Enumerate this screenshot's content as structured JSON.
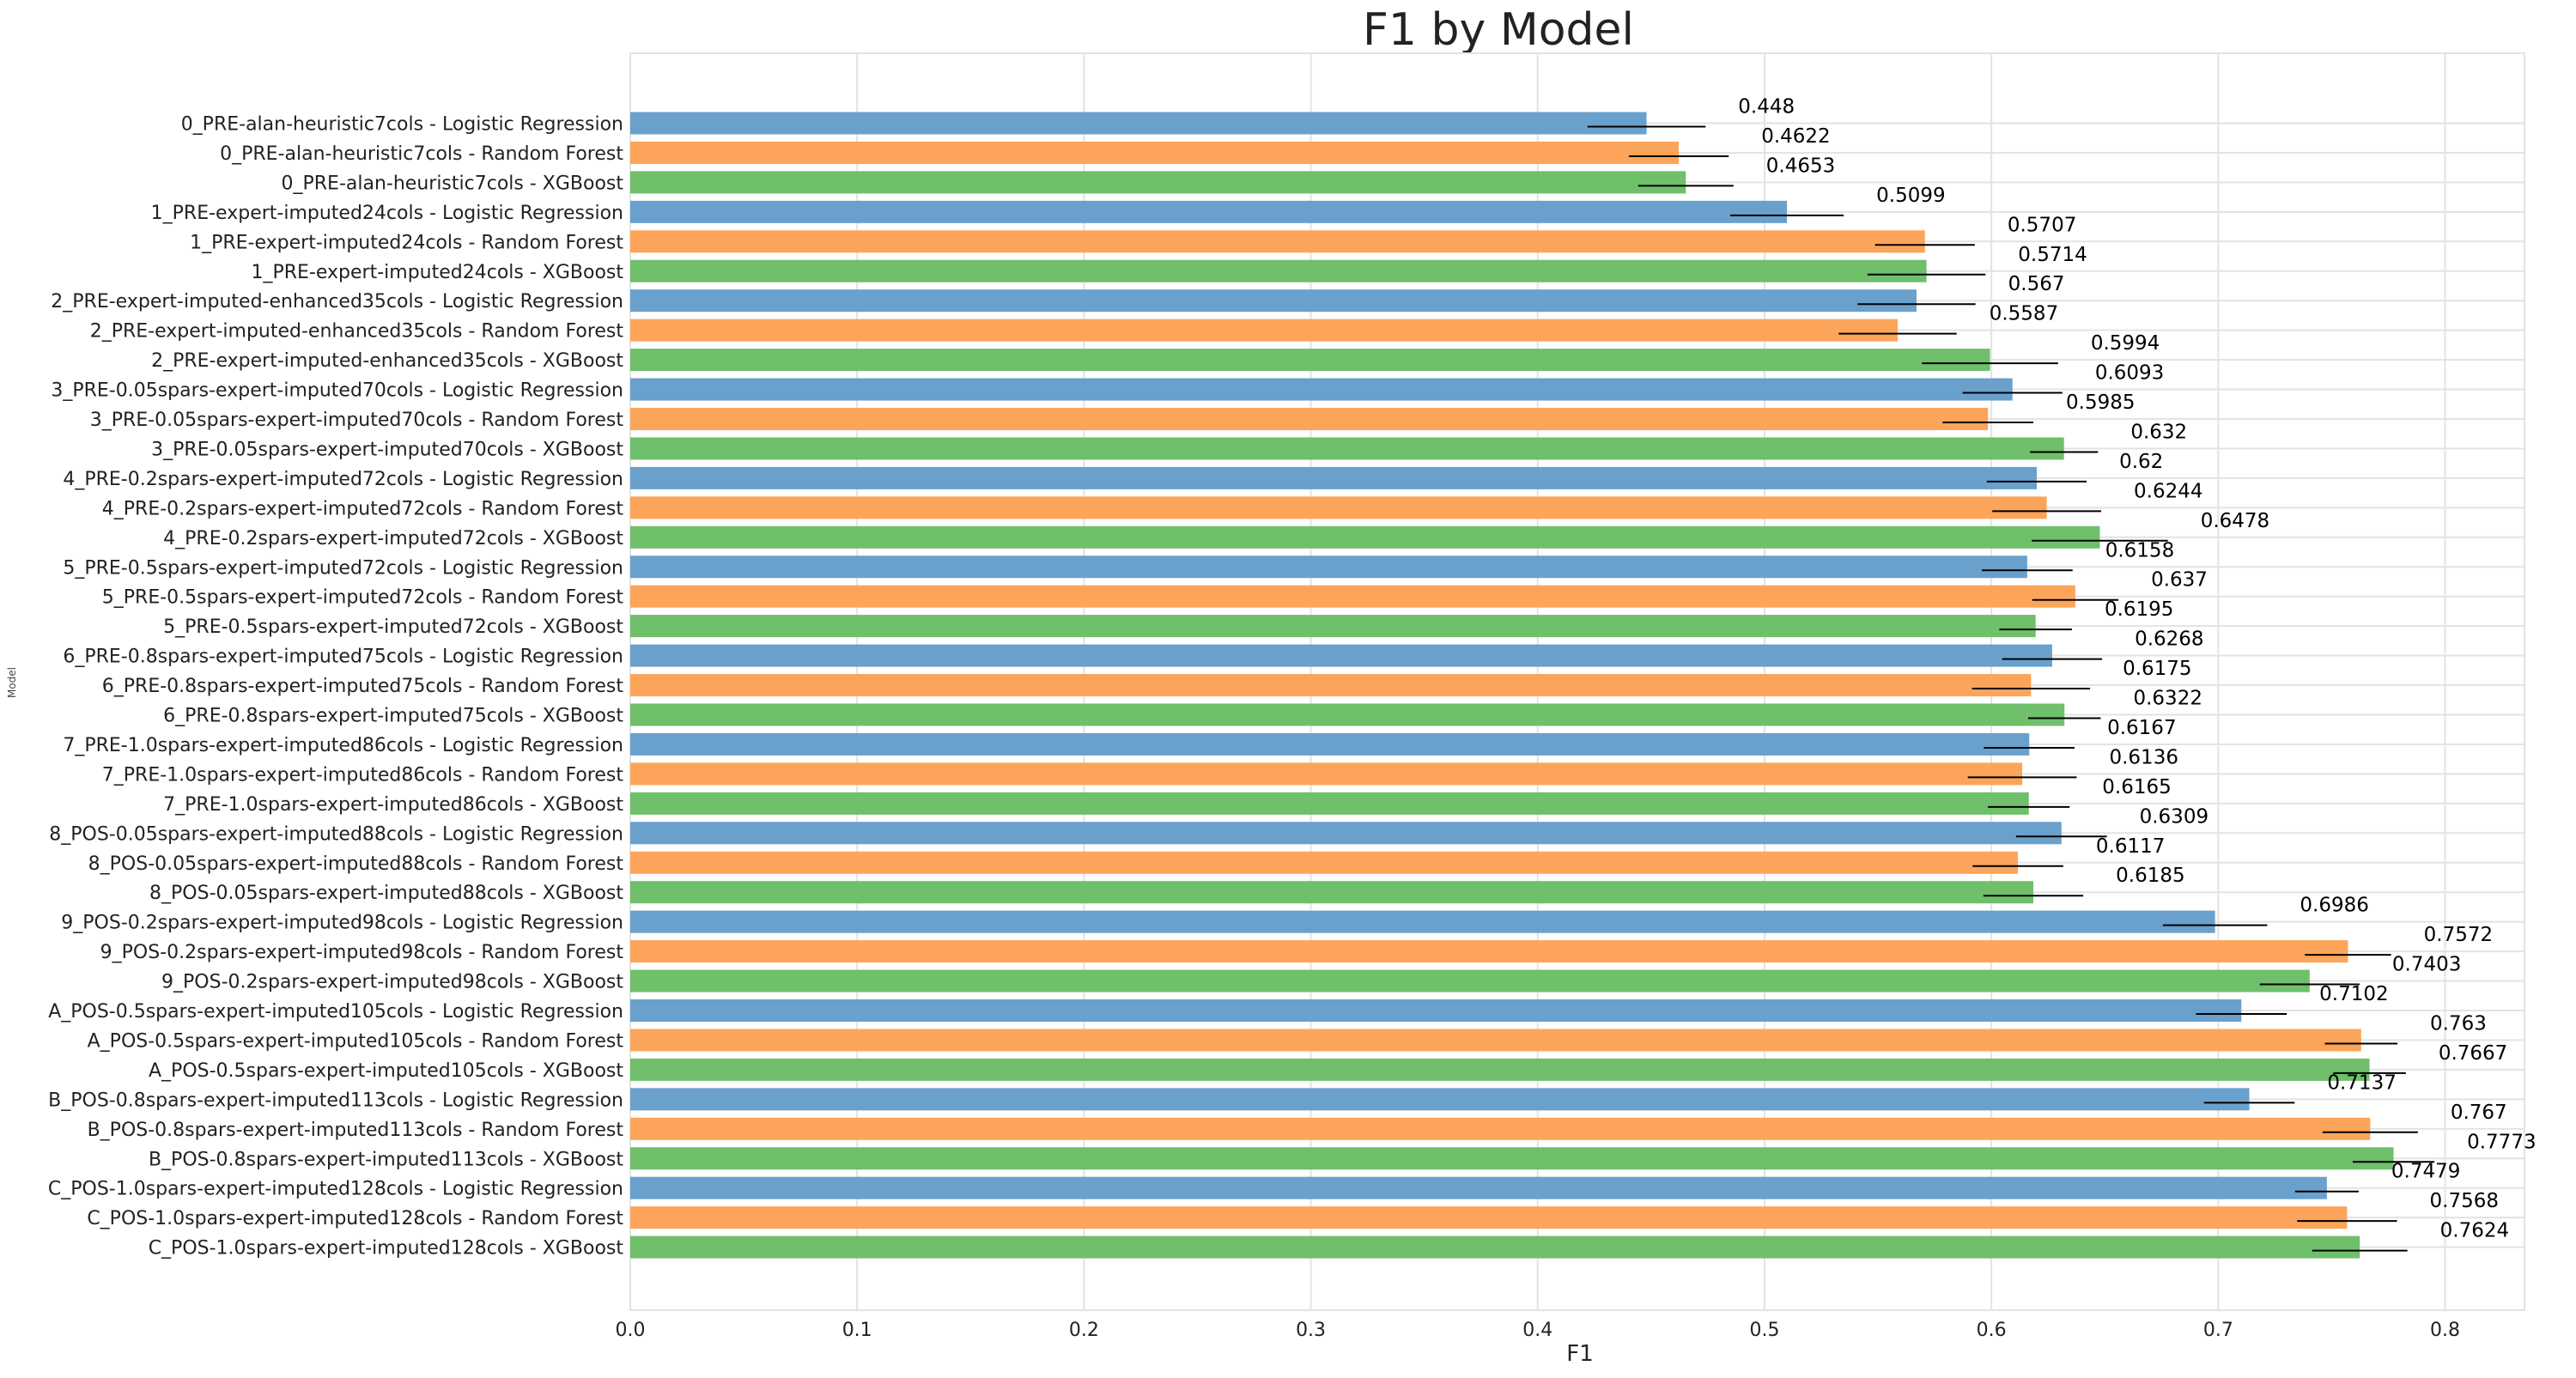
{
  "chart_data": {
    "type": "bar",
    "orientation": "horizontal",
    "title": "F1 by Model",
    "xlabel": "F1",
    "ylabel": "Model",
    "xlim": [
      0,
      0.835
    ],
    "xticks": [
      "0.0",
      "0.1",
      "0.2",
      "0.3",
      "0.4",
      "0.5",
      "0.6",
      "0.7",
      "0.8"
    ],
    "grid": true,
    "series_colors": {
      "Logistic Regression": "#6aa0cc",
      "Random Forest": "#fca55a",
      "XGBoost": "#6fbf6b"
    },
    "bars": [
      {
        "label": "0_PRE-alan-heuristic7cols - Logistic Regression",
        "model": "Logistic Regression",
        "value": 0.448,
        "value_label": "0.448",
        "err": 0.026
      },
      {
        "label": "0_PRE-alan-heuristic7cols - Random Forest",
        "model": "Random Forest",
        "value": 0.4622,
        "value_label": "0.4622",
        "err": 0.022
      },
      {
        "label": "0_PRE-alan-heuristic7cols - XGBoost",
        "model": "XGBoost",
        "value": 0.4653,
        "value_label": "0.4653",
        "err": 0.021
      },
      {
        "label": "1_PRE-expert-imputed24cols - Logistic Regression",
        "model": "Logistic Regression",
        "value": 0.5099,
        "value_label": "0.5099",
        "err": 0.025
      },
      {
        "label": "1_PRE-expert-imputed24cols - Random Forest",
        "model": "Random Forest",
        "value": 0.5707,
        "value_label": "0.5707",
        "err": 0.022
      },
      {
        "label": "1_PRE-expert-imputed24cols - XGBoost",
        "model": "XGBoost",
        "value": 0.5714,
        "value_label": "0.5714",
        "err": 0.026
      },
      {
        "label": "2_PRE-expert-imputed-enhanced35cols - Logistic Regression",
        "model": "Logistic Regression",
        "value": 0.567,
        "value_label": "0.567",
        "err": 0.026
      },
      {
        "label": "2_PRE-expert-imputed-enhanced35cols - Random Forest",
        "model": "Random Forest",
        "value": 0.5587,
        "value_label": "0.5587",
        "err": 0.026
      },
      {
        "label": "2_PRE-expert-imputed-enhanced35cols - XGBoost",
        "model": "XGBoost",
        "value": 0.5994,
        "value_label": "0.5994",
        "err": 0.03
      },
      {
        "label": "3_PRE-0.05spars-expert-imputed70cols - Logistic Regression",
        "model": "Logistic Regression",
        "value": 0.6093,
        "value_label": "0.6093",
        "err": 0.022
      },
      {
        "label": "3_PRE-0.05spars-expert-imputed70cols - Random Forest",
        "model": "Random Forest",
        "value": 0.5985,
        "value_label": "0.5985",
        "err": 0.02
      },
      {
        "label": "3_PRE-0.05spars-expert-imputed70cols - XGBoost",
        "model": "XGBoost",
        "value": 0.632,
        "value_label": "0.632",
        "err": 0.015
      },
      {
        "label": "4_PRE-0.2spars-expert-imputed72cols - Logistic Regression",
        "model": "Logistic Regression",
        "value": 0.62,
        "value_label": "0.62",
        "err": 0.022
      },
      {
        "label": "4_PRE-0.2spars-expert-imputed72cols - Random Forest",
        "model": "Random Forest",
        "value": 0.6244,
        "value_label": "0.6244",
        "err": 0.024
      },
      {
        "label": "4_PRE-0.2spars-expert-imputed72cols - XGBoost",
        "model": "XGBoost",
        "value": 0.6478,
        "value_label": "0.6478",
        "err": 0.03
      },
      {
        "label": "5_PRE-0.5spars-expert-imputed72cols - Logistic Regression",
        "model": "Logistic Regression",
        "value": 0.6158,
        "value_label": "0.6158",
        "err": 0.02
      },
      {
        "label": "5_PRE-0.5spars-expert-imputed72cols - Random Forest",
        "model": "Random Forest",
        "value": 0.637,
        "value_label": "0.637",
        "err": 0.019
      },
      {
        "label": "5_PRE-0.5spars-expert-imputed72cols - XGBoost",
        "model": "XGBoost",
        "value": 0.6195,
        "value_label": "0.6195",
        "err": 0.016
      },
      {
        "label": "6_PRE-0.8spars-expert-imputed75cols - Logistic Regression",
        "model": "Logistic Regression",
        "value": 0.6268,
        "value_label": "0.6268",
        "err": 0.022
      },
      {
        "label": "6_PRE-0.8spars-expert-imputed75cols - Random Forest",
        "model": "Random Forest",
        "value": 0.6175,
        "value_label": "0.6175",
        "err": 0.026
      },
      {
        "label": "6_PRE-0.8spars-expert-imputed75cols - XGBoost",
        "model": "XGBoost",
        "value": 0.6322,
        "value_label": "0.6322",
        "err": 0.016
      },
      {
        "label": "7_PRE-1.0spars-expert-imputed86cols - Logistic Regression",
        "model": "Logistic Regression",
        "value": 0.6167,
        "value_label": "0.6167",
        "err": 0.02
      },
      {
        "label": "7_PRE-1.0spars-expert-imputed86cols - Random Forest",
        "model": "Random Forest",
        "value": 0.6136,
        "value_label": "0.6136",
        "err": 0.024
      },
      {
        "label": "7_PRE-1.0spars-expert-imputed86cols - XGBoost",
        "model": "XGBoost",
        "value": 0.6165,
        "value_label": "0.6165",
        "err": 0.018
      },
      {
        "label": "8_POS-0.05spars-expert-imputed88cols - Logistic Regression",
        "model": "Logistic Regression",
        "value": 0.6309,
        "value_label": "0.6309",
        "err": 0.02
      },
      {
        "label": "8_POS-0.05spars-expert-imputed88cols - Random Forest",
        "model": "Random Forest",
        "value": 0.6117,
        "value_label": "0.6117",
        "err": 0.02
      },
      {
        "label": "8_POS-0.05spars-expert-imputed88cols - XGBoost",
        "model": "XGBoost",
        "value": 0.6185,
        "value_label": "0.6185",
        "err": 0.022
      },
      {
        "label": "9_POS-0.2spars-expert-imputed98cols - Logistic Regression",
        "model": "Logistic Regression",
        "value": 0.6986,
        "value_label": "0.6986",
        "err": 0.023
      },
      {
        "label": "9_POS-0.2spars-expert-imputed98cols - Random Forest",
        "model": "Random Forest",
        "value": 0.7572,
        "value_label": "0.7572",
        "err": 0.019
      },
      {
        "label": "9_POS-0.2spars-expert-imputed98cols - XGBoost",
        "model": "XGBoost",
        "value": 0.7403,
        "value_label": "0.7403",
        "err": 0.022
      },
      {
        "label": "A_POS-0.5spars-expert-imputed105cols - Logistic Regression",
        "model": "Logistic Regression",
        "value": 0.7102,
        "value_label": "0.7102",
        "err": 0.02
      },
      {
        "label": "A_POS-0.5spars-expert-imputed105cols - Random Forest",
        "model": "Random Forest",
        "value": 0.763,
        "value_label": "0.763",
        "err": 0.016
      },
      {
        "label": "A_POS-0.5spars-expert-imputed105cols - XGBoost",
        "model": "XGBoost",
        "value": 0.7667,
        "value_label": "0.7667",
        "err": 0.016
      },
      {
        "label": "B_POS-0.8spars-expert-imputed113cols - Logistic Regression",
        "model": "Logistic Regression",
        "value": 0.7137,
        "value_label": "0.7137",
        "err": 0.02
      },
      {
        "label": "B_POS-0.8spars-expert-imputed113cols - Random Forest",
        "model": "Random Forest",
        "value": 0.767,
        "value_label": "0.767",
        "err": 0.021
      },
      {
        "label": "B_POS-0.8spars-expert-imputed113cols - XGBoost",
        "model": "XGBoost",
        "value": 0.7773,
        "value_label": "0.7773",
        "err": 0.018
      },
      {
        "label": "C_POS-1.0spars-expert-imputed128cols - Logistic Regression",
        "model": "Logistic Regression",
        "value": 0.7479,
        "value_label": "0.7479",
        "err": 0.014
      },
      {
        "label": "C_POS-1.0spars-expert-imputed128cols - Random Forest",
        "model": "Random Forest",
        "value": 0.7568,
        "value_label": "0.7568",
        "err": 0.022
      },
      {
        "label": "C_POS-1.0spars-expert-imputed128cols - XGBoost",
        "model": "XGBoost",
        "value": 0.7624,
        "value_label": "0.7624",
        "err": 0.021
      }
    ]
  }
}
